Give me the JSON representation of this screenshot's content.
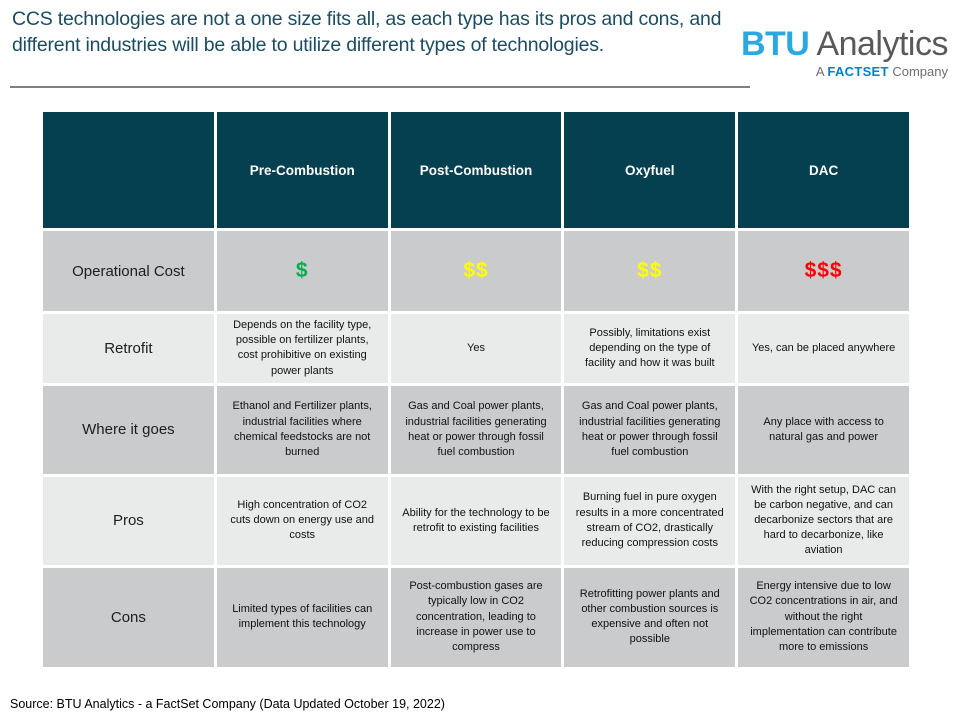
{
  "header": {
    "title": "CCS technologies are not a one size fits all, as each type has its pros and cons, and different industries will be able to utilize different types of technologies.",
    "logo": {
      "brand_primary": "BTU",
      "brand_secondary": "Analytics",
      "tagline_prefix": "A ",
      "tagline_brand": "FACTSET",
      "tagline_suffix": " Company"
    }
  },
  "colors": {
    "title_text": "#1b4c61",
    "header_cell_bg": "#04404f",
    "row_dark_bg": "#c9cbcc",
    "row_light_bg": "#e9eaea",
    "cost_low": "#00b050",
    "cost_mid": "#ffff00",
    "cost_high": "#ff0000",
    "brand_cyan": "#29a9e0",
    "brand_blue": "#0082c9"
  },
  "table": {
    "columns": [
      "",
      "Pre-Combustion",
      "Post-Combustion",
      "Oxyfuel",
      "DAC"
    ],
    "rows": [
      {
        "label": "Operational Cost",
        "cells": [
          "$",
          "$$",
          "$$",
          "$$$"
        ],
        "cell_colors": [
          "#00b050",
          "#ffff00",
          "#ffff00",
          "#ff0000"
        ]
      },
      {
        "label": "Retrofit",
        "cells": [
          "Depends on the facility type, possible on fertilizer plants, cost prohibitive on existing power plants",
          "Yes",
          "Possibly, limitations exist depending on the type of facility and how it was built",
          "Yes, can be placed anywhere"
        ]
      },
      {
        "label": "Where it goes",
        "cells": [
          "Ethanol and Fertilizer plants, industrial facilities where chemical feedstocks are not burned",
          "Gas and Coal power plants, industrial facilities generating heat or power through fossil fuel combustion",
          "Gas and Coal power plants, industrial facilities generating heat or power through fossil fuel combustion",
          "Any place with access to natural gas and power"
        ]
      },
      {
        "label": "Pros",
        "cells": [
          "High concentration of CO2 cuts down on energy use and costs",
          "Ability for the technology to be retrofit to existing facilities",
          "Burning fuel in pure oxygen results in a more concentrated stream of CO2, drastically reducing compression costs",
          "With the right setup, DAC can be carbon negative, and can decarbonize sectors that are hard to decarbonize, like aviation"
        ]
      },
      {
        "label": "Cons",
        "cells": [
          "Limited types of facilities can implement this technology",
          "Post-combustion gases are typically low in CO2 concentration, leading to increase in power use to compress",
          "Retrofitting power plants and other combustion sources is expensive and often not possible",
          "Energy intensive due to low CO2 concentrations in air, and without the right implementation can contribute more to emissions"
        ]
      }
    ]
  },
  "footer": {
    "source": "Source: BTU Analytics - a FactSet Company (Data Updated October 19, 2022)"
  }
}
